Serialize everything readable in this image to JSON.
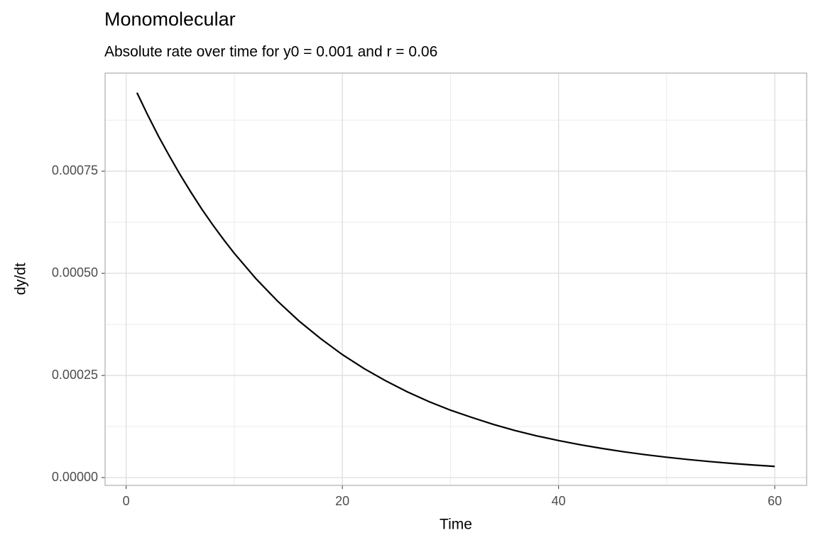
{
  "chart_data": {
    "type": "line",
    "title": "Monomolecular",
    "subtitle": "Absolute rate over time for y0 = 0.001 and r = 0.06",
    "x_label": "Time",
    "y_label": "dy/dt",
    "x": [
      1,
      2,
      3,
      4,
      5,
      6,
      7,
      8,
      9,
      10,
      12,
      14,
      16,
      18,
      20,
      22,
      24,
      26,
      28,
      30,
      32,
      34,
      36,
      38,
      40,
      42,
      44,
      46,
      48,
      50,
      52,
      54,
      56,
      58,
      60
    ],
    "series": [
      {
        "name": "dy/dt",
        "color": "#000000",
        "values": [
          0.000942,
          0.000887,
          0.000835,
          0.000787,
          0.000741,
          0.000698,
          0.000657,
          0.000619,
          0.000583,
          0.000549,
          0.000487,
          0.000432,
          0.000383,
          0.00034,
          0.000301,
          0.000267,
          0.000237,
          0.00021,
          0.000186,
          0.000165,
          0.000147,
          0.00013,
          0.000115,
          0.000102,
          9.07e-05,
          8.05e-05,
          7.14e-05,
          6.33e-05,
          5.61e-05,
          4.98e-05,
          4.42e-05,
          3.92e-05,
          3.47e-05,
          3.08e-05,
          2.73e-05
        ]
      }
    ],
    "xlim": [
      -1.95,
      62.95
    ],
    "ylim": [
      -1.91e-05,
      0.00099
    ],
    "xticks": [
      0,
      20,
      40,
      60
    ],
    "yticks": [
      {
        "value": 0,
        "label": "0.00000"
      },
      {
        "value": 0.00025,
        "label": "0.00025"
      },
      {
        "value": 0.0005,
        "label": "0.00050"
      },
      {
        "value": 0.00075,
        "label": "0.00075"
      }
    ],
    "x_minor_ticks": [
      10,
      30,
      50
    ],
    "y_minor_ticks": [
      0.000125,
      0.000375,
      0.000625,
      0.000875
    ],
    "grid": true
  }
}
